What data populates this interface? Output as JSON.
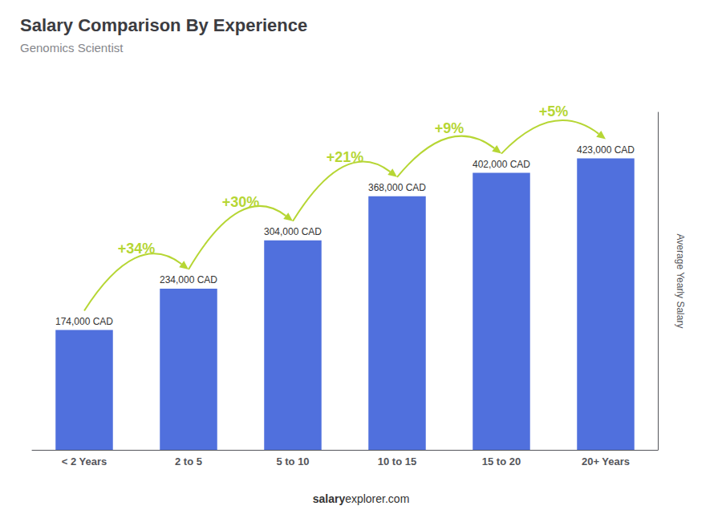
{
  "chart_data": {
    "type": "bar",
    "title": "Salary Comparison By Experience",
    "subtitle": "Genomics Scientist",
    "categories": [
      "< 2 Years",
      "2 to 5",
      "5 to 10",
      "10 to 15",
      "15 to 20",
      "20+ Years"
    ],
    "values": [
      174000,
      234000,
      304000,
      368000,
      402000,
      423000
    ],
    "value_labels": [
      "174,000 CAD",
      "234,000 CAD",
      "304,000 CAD",
      "368,000 CAD",
      "402,000 CAD",
      "423,000 CAD"
    ],
    "data_labels": true,
    "ylabel": "Average Yearly Salary",
    "ylim": [
      0,
      490000
    ],
    "grid": false,
    "tick_labels": "x",
    "annotations": [
      {
        "from": "< 2 Years",
        "to": "2 to 5",
        "text": "+34%"
      },
      {
        "from": "2 to 5",
        "to": "5 to 10",
        "text": "+30%"
      },
      {
        "from": "5 to 10",
        "to": "10 to 15",
        "text": "+21%"
      },
      {
        "from": "10 to 15",
        "to": "15 to 20",
        "text": "+9%"
      },
      {
        "from": "15 to 20",
        "to": "20+ Years",
        "text": "+5%"
      }
    ],
    "footer_bold": "salary",
    "footer_regular": "explorer.com"
  }
}
